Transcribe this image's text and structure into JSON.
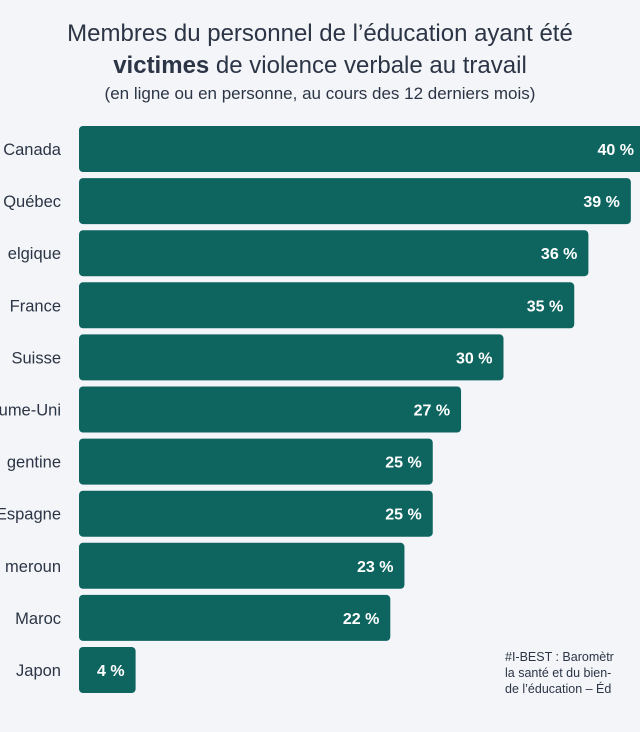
{
  "title": {
    "line1": "Membres du personnel de l’éducation ayant été",
    "line2_bold": "victimes",
    "line2_rest": " de violence verbale au travail"
  },
  "subtitle": "(en ligne ou en personne, au cours des 12 derniers mois)",
  "source": {
    "line1": "#I-BEST : Baromètr",
    "line2": "la santé et du bien-",
    "line3": "de l’éducation – Éd"
  },
  "colors": {
    "bar": "#0e6560",
    "background": "#f4f5f9",
    "text": "#2b3545",
    "bar_label": "#ffffff"
  },
  "chart_data": {
    "type": "bar",
    "orientation": "horizontal",
    "categories": [
      "Canada",
      "Québec",
      "elgique",
      "France",
      "Suisse",
      "ume-Uni",
      "gentine",
      "Espagne",
      "meroun",
      "Maroc",
      "Japon"
    ],
    "values": [
      40,
      39,
      36,
      35,
      30,
      27,
      25,
      25,
      23,
      22,
      4
    ],
    "value_labels": [
      "40 %",
      "39 %",
      "36 %",
      "35 %",
      "30 %",
      "27 %",
      "25 %",
      "25 %",
      "23 %",
      "22 %",
      "4 %"
    ],
    "unit": "%",
    "xlim": [
      0,
      40
    ]
  }
}
